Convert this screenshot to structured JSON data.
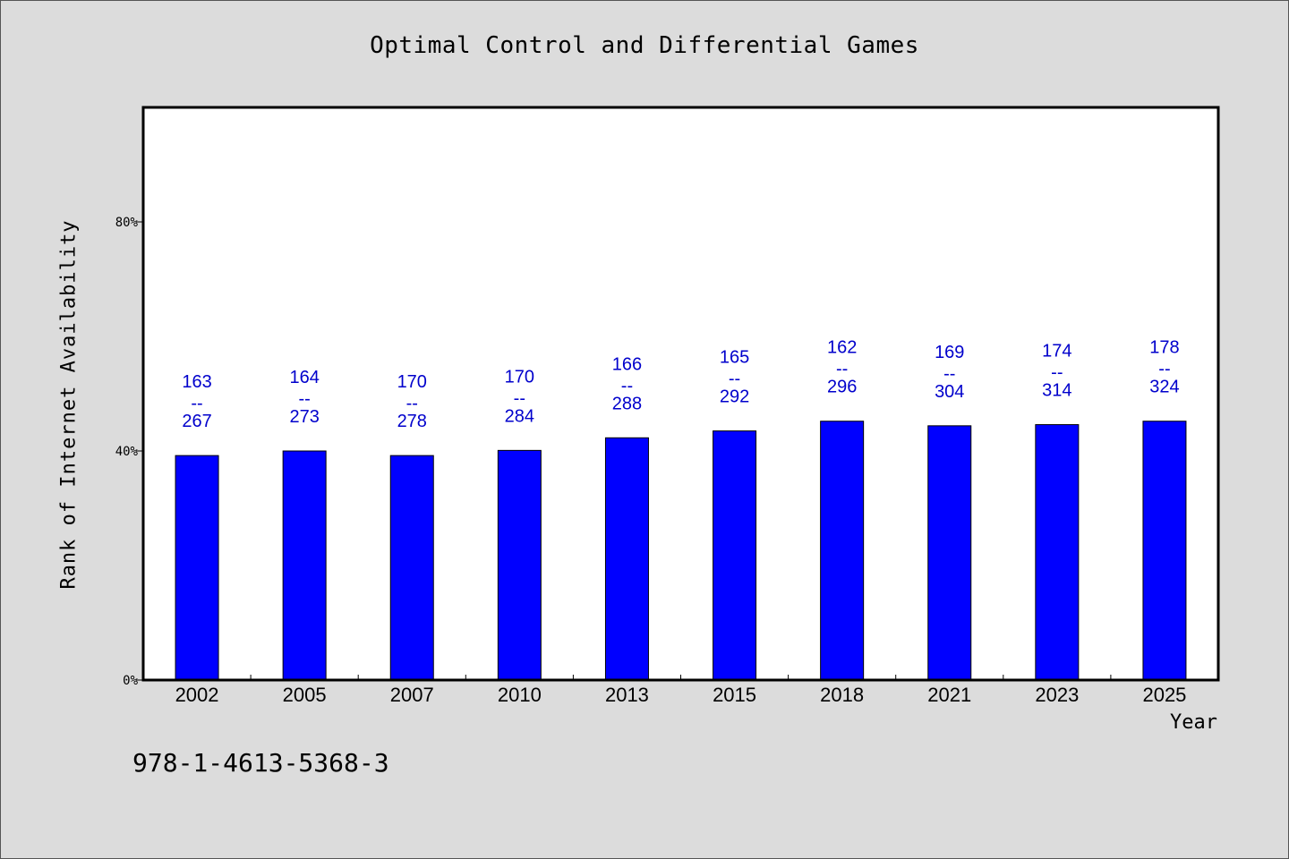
{
  "chart_data": {
    "type": "bar",
    "title": "Optimal Control and Differential Games",
    "xlabel": "Year",
    "ylabel": "Rank of Internet Availability",
    "categories": [
      "2002",
      "2005",
      "2007",
      "2010",
      "2013",
      "2015",
      "2018",
      "2021",
      "2023",
      "2025"
    ],
    "values": [
      39.2,
      40.0,
      39.2,
      40.1,
      42.3,
      43.5,
      45.2,
      44.4,
      44.6,
      45.2
    ],
    "value_unit": "%",
    "ylim": [
      0,
      100
    ],
    "yticks": [
      0,
      40,
      80
    ],
    "ytick_labels": [
      "0%",
      "40%",
      "80%"
    ],
    "bar_labels": [
      {
        "top": "163",
        "sep": "--",
        "bottom": "267"
      },
      {
        "top": "164",
        "sep": "--",
        "bottom": "273"
      },
      {
        "top": "170",
        "sep": "--",
        "bottom": "278"
      },
      {
        "top": "170",
        "sep": "--",
        "bottom": "284"
      },
      {
        "top": "166",
        "sep": "--",
        "bottom": "288"
      },
      {
        "top": "165",
        "sep": "--",
        "bottom": "292"
      },
      {
        "top": "162",
        "sep": "--",
        "bottom": "296"
      },
      {
        "top": "169",
        "sep": "--",
        "bottom": "304"
      },
      {
        "top": "174",
        "sep": "--",
        "bottom": "314"
      },
      {
        "top": "178",
        "sep": "--",
        "bottom": "324"
      }
    ],
    "grid": false,
    "legend": "none",
    "colors": {
      "bar": "#0000ff",
      "bar_label": "#0000cc",
      "plot_background": "#ffffff",
      "figure_background": "#dcdcdc"
    }
  },
  "footer": {
    "isbn": "978-1-4613-5368-3"
  }
}
